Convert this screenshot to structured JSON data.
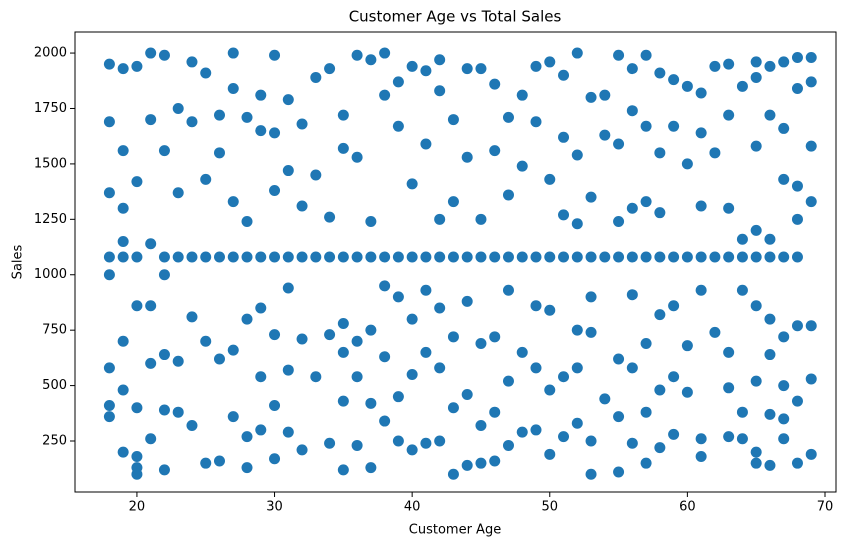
{
  "chart_data": {
    "type": "scatter",
    "title": "Customer Age vs Total Sales",
    "x_label": "Customer Age",
    "y_label": "Sales",
    "color": "#1f77b4",
    "xlim": [
      15.5,
      70.8
    ],
    "ylim": [
      20,
      2095
    ],
    "xticks": [
      20,
      30,
      40,
      50,
      60,
      70
    ],
    "yticks": [
      250,
      500,
      750,
      1000,
      1250,
      1500,
      1750,
      2000
    ],
    "x": [
      18,
      18,
      18,
      18,
      18,
      18,
      18,
      18,
      19,
      19,
      19,
      19,
      19,
      19,
      19,
      19,
      20,
      20,
      20,
      20,
      20,
      20,
      20,
      20,
      21,
      21,
      21,
      21,
      21,
      21,
      22,
      22,
      22,
      22,
      22,
      22,
      22,
      23,
      23,
      23,
      23,
      23,
      24,
      24,
      24,
      24,
      24,
      25,
      25,
      25,
      25,
      25,
      26,
      26,
      26,
      26,
      26,
      27,
      27,
      27,
      27,
      27,
      27,
      28,
      28,
      28,
      28,
      28,
      28,
      29,
      29,
      29,
      29,
      29,
      29,
      30,
      30,
      30,
      30,
      30,
      30,
      30,
      31,
      31,
      31,
      31,
      31,
      31,
      32,
      32,
      32,
      32,
      32,
      33,
      33,
      33,
      33,
      34,
      34,
      34,
      34,
      34,
      35,
      35,
      35,
      35,
      35,
      35,
      35,
      36,
      36,
      36,
      36,
      36,
      36,
      37,
      37,
      37,
      37,
      37,
      37,
      38,
      38,
      38,
      38,
      38,
      38,
      39,
      39,
      39,
      39,
      39,
      39,
      40,
      40,
      40,
      40,
      40,
      40,
      41,
      41,
      41,
      41,
      41,
      41,
      42,
      42,
      42,
      42,
      42,
      42,
      42,
      43,
      43,
      43,
      43,
      43,
      43,
      44,
      44,
      44,
      44,
      44,
      44,
      45,
      45,
      45,
      45,
      45,
      45,
      46,
      46,
      46,
      46,
      46,
      46,
      47,
      47,
      47,
      47,
      47,
      47,
      48,
      48,
      48,
      48,
      48,
      49,
      49,
      49,
      49,
      49,
      49,
      50,
      50,
      50,
      50,
      50,
      50,
      51,
      51,
      51,
      51,
      51,
      51,
      52,
      52,
      52,
      52,
      52,
      52,
      52,
      53,
      53,
      53,
      53,
      53,
      53,
      53,
      54,
      54,
      54,
      54,
      55,
      55,
      55,
      55,
      55,
      55,
      55,
      56,
      56,
      56,
      56,
      56,
      56,
      56,
      57,
      57,
      57,
      57,
      57,
      57,
      57,
      58,
      58,
      58,
      58,
      58,
      58,
      58,
      59,
      59,
      59,
      59,
      59,
      59,
      60,
      60,
      60,
      60,
      60,
      61,
      61,
      61,
      61,
      61,
      61,
      61,
      62,
      62,
      62,
      62,
      63,
      63,
      63,
      63,
      63,
      63,
      63,
      64,
      64,
      64,
      64,
      64,
      64,
      65,
      65,
      65,
      65,
      65,
      65,
      65,
      65,
      65,
      66,
      66,
      66,
      66,
      66,
      66,
      66,
      66,
      67,
      67,
      67,
      67,
      67,
      67,
      67,
      67,
      68,
      68,
      68,
      68,
      68,
      68,
      68,
      68,
      69,
      69,
      69,
      69,
      69,
      69,
      69
    ],
    "values": [
      1950,
      1690,
      1370,
      1080,
      1000,
      580,
      410,
      360,
      1930,
      1560,
      1300,
      1150,
      1080,
      700,
      480,
      200,
      1940,
      1420,
      1080,
      860,
      400,
      180,
      130,
      100,
      2000,
      1700,
      1140,
      860,
      600,
      260,
      1990,
      1560,
      1080,
      1000,
      640,
      390,
      120,
      1750,
      1370,
      1080,
      610,
      380,
      1960,
      1690,
      1080,
      810,
      320,
      1910,
      1430,
      1080,
      700,
      150,
      1720,
      1550,
      1080,
      620,
      160,
      2000,
      1840,
      1330,
      1080,
      660,
      360,
      1710,
      1240,
      1080,
      800,
      270,
      130,
      1810,
      1650,
      1080,
      850,
      540,
      300,
      1990,
      1640,
      1380,
      1080,
      730,
      410,
      170,
      1790,
      1470,
      1080,
      940,
      570,
      290,
      1680,
      1310,
      1080,
      710,
      210,
      1890,
      1450,
      1080,
      540,
      1930,
      1260,
      1080,
      730,
      240,
      1720,
      1570,
      1080,
      780,
      650,
      430,
      120,
      1990,
      1530,
      1080,
      700,
      540,
      230,
      1970,
      1240,
      1080,
      750,
      420,
      130,
      2000,
      1810,
      1080,
      950,
      630,
      340,
      1870,
      1670,
      1080,
      900,
      450,
      250,
      1940,
      1410,
      1080,
      800,
      550,
      210,
      1920,
      1590,
      1080,
      930,
      650,
      240,
      1970,
      1830,
      1250,
      1080,
      850,
      580,
      250,
      1700,
      1330,
      1080,
      720,
      400,
      100,
      1930,
      1530,
      1080,
      880,
      460,
      140,
      1930,
      1250,
      1080,
      690,
      320,
      150,
      1860,
      1560,
      1080,
      720,
      380,
      160,
      1710,
      1360,
      1080,
      930,
      520,
      230,
      1810,
      1490,
      1080,
      650,
      290,
      1940,
      1690,
      1080,
      860,
      580,
      300,
      1960,
      1430,
      1080,
      840,
      480,
      190,
      1900,
      1620,
      1270,
      1080,
      540,
      270,
      2000,
      1540,
      1230,
      1080,
      750,
      580,
      330,
      1800,
      1350,
      1080,
      900,
      740,
      250,
      100,
      1810,
      1630,
      1080,
      440,
      1990,
      1590,
      1240,
      1080,
      620,
      360,
      110,
      1930,
      1740,
      1300,
      1080,
      910,
      580,
      240,
      1990,
      1670,
      1330,
      1080,
      690,
      380,
      150,
      1910,
      1550,
      1280,
      1080,
      820,
      480,
      220,
      1880,
      1670,
      1080,
      860,
      540,
      280,
      1850,
      1500,
      1080,
      680,
      470,
      1820,
      1640,
      1310,
      1080,
      930,
      260,
      180,
      1940,
      1550,
      1080,
      740,
      1950,
      1720,
      1300,
      1080,
      650,
      490,
      270,
      1850,
      1160,
      1080,
      930,
      380,
      260,
      1960,
      1890,
      1580,
      1200,
      1080,
      860,
      520,
      200,
      150,
      1940,
      1720,
      1160,
      1080,
      800,
      640,
      370,
      140,
      1960,
      1660,
      1430,
      1080,
      720,
      500,
      350,
      260,
      1980,
      1840,
      1400,
      1250,
      1080,
      770,
      430,
      150,
      1980,
      1870,
      1580,
      1330,
      770,
      530,
      190
    ]
  }
}
